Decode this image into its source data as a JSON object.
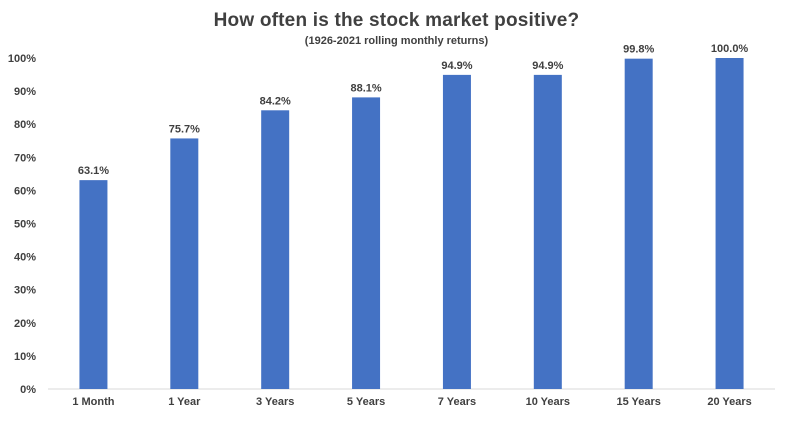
{
  "chart_data": {
    "type": "bar",
    "title": "How often is the stock market positive?",
    "subtitle": "(1926-2021 rolling monthly returns)",
    "xlabel": "",
    "ylabel": "",
    "categories": [
      "1 Month",
      "1 Year",
      "3 Years",
      "5 Years",
      "7 Years",
      "10 Years",
      "15 Years",
      "20 Years"
    ],
    "values": [
      63.1,
      75.7,
      84.2,
      88.1,
      94.9,
      94.9,
      99.8,
      100.0
    ],
    "data_labels": [
      "63.1%",
      "75.7%",
      "84.2%",
      "88.1%",
      "94.9%",
      "94.9%",
      "99.8%",
      "100.0%"
    ],
    "ylim": [
      0,
      100
    ],
    "yticks": [
      0,
      10,
      20,
      30,
      40,
      50,
      60,
      70,
      80,
      90,
      100
    ],
    "ytick_labels": [
      "0%",
      "10%",
      "20%",
      "30%",
      "40%",
      "50%",
      "60%",
      "70%",
      "80%",
      "90%",
      "100%"
    ],
    "grid": false,
    "legend": "none",
    "bar_color": "#4472C4",
    "text_color": "#404040"
  }
}
